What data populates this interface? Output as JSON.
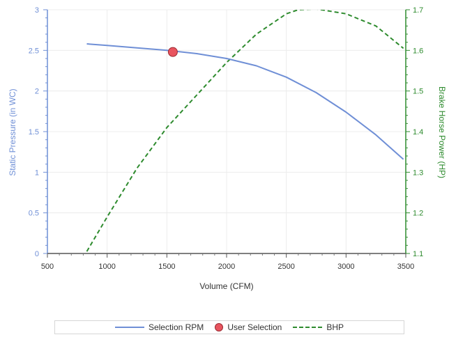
{
  "chart_data": {
    "type": "line",
    "xlabel": "Volume (CFM)",
    "ylabel_left": "Static Pressure (in WC)",
    "ylabel_right": "Brake Horse Power (HP)",
    "xlim": [
      500,
      3500
    ],
    "ylim_left": [
      0,
      3
    ],
    "ylim_right": [
      1.1,
      1.7
    ],
    "x_ticks": [
      "500",
      "1000",
      "1500",
      "2000",
      "2500",
      "3000",
      "3500"
    ],
    "y_left_ticks": [
      "0",
      "0.5",
      "1",
      "1.5",
      "2",
      "2.5",
      "3"
    ],
    "y_right_ticks": [
      "1.1",
      "1.2",
      "1.3",
      "1.4",
      "1.5",
      "1.6",
      "1.7"
    ],
    "grid": true,
    "legend_position": "bottom",
    "series": [
      {
        "name": "Selection RPM",
        "axis": "left",
        "style": "solid",
        "color": "#6f8fd6",
        "x": [
          830,
          1000,
          1250,
          1500,
          1750,
          2000,
          2250,
          2500,
          2750,
          3000,
          3250,
          3480
        ],
        "y": [
          2.58,
          2.56,
          2.53,
          2.5,
          2.46,
          2.4,
          2.31,
          2.17,
          1.98,
          1.74,
          1.46,
          1.16
        ]
      },
      {
        "name": "User Selection",
        "axis": "left",
        "style": "marker",
        "color": "#e8545f",
        "x": [
          1550
        ],
        "y": [
          2.48
        ]
      },
      {
        "name": "BHP",
        "axis": "right",
        "style": "dashed",
        "color": "#2e8b2e",
        "x": [
          830,
          1000,
          1250,
          1500,
          1750,
          2000,
          2250,
          2500,
          2600,
          2750,
          3000,
          3250,
          3480
        ],
        "y": [
          1.105,
          1.19,
          1.31,
          1.41,
          1.49,
          1.57,
          1.64,
          1.69,
          1.7,
          1.702,
          1.69,
          1.66,
          1.605
        ]
      }
    ]
  }
}
